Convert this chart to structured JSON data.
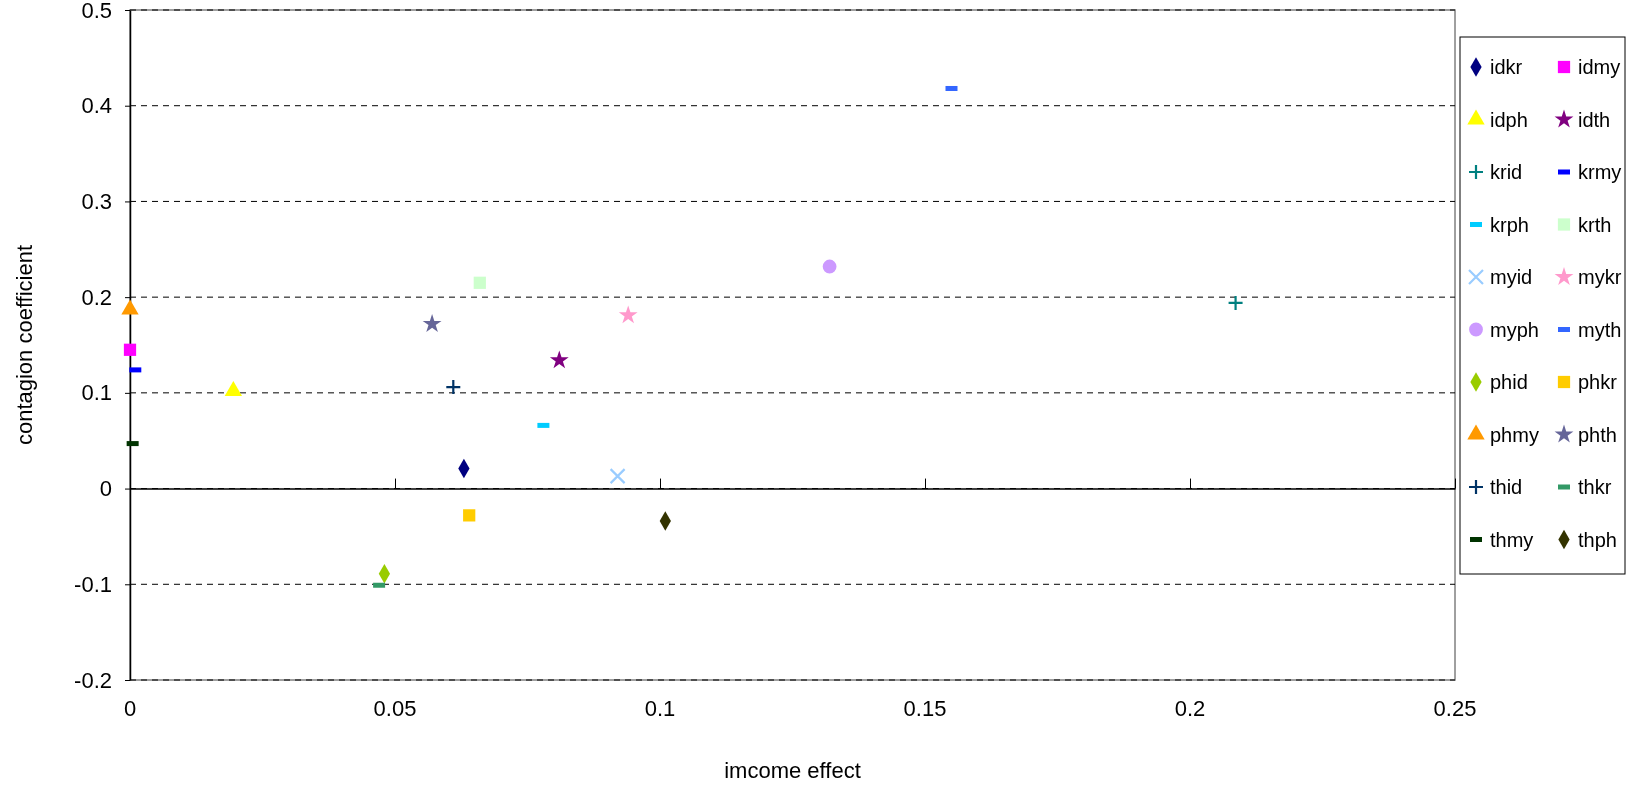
{
  "chart_data": {
    "type": "scatter",
    "xlabel": "imcome effect",
    "ylabel": "contagion coefficient",
    "xlim": [
      0,
      0.25
    ],
    "xticks": [
      0,
      0.05,
      0.1,
      0.15,
      0.2,
      0.25
    ],
    "ylim": [
      -0.2,
      0.5
    ],
    "yticks": [
      -0.2,
      -0.1,
      0,
      0.1,
      0.2,
      0.3,
      0.4,
      0.5
    ],
    "grid": "y",
    "legend": "right",
    "series": [
      {
        "name": "idkr",
        "color": "#000080",
        "marker": "diamond",
        "x": [
          0.063
        ],
        "values": [
          0.021
        ]
      },
      {
        "name": "idmy",
        "color": "#ff00ff",
        "marker": "square",
        "x": [
          0
        ],
        "values": [
          0.145
        ]
      },
      {
        "name": "idph",
        "color": "#ffff00",
        "marker": "triangle",
        "x": [
          0.0195
        ],
        "values": [
          0.102
        ]
      },
      {
        "name": "idth",
        "color": "#800080",
        "marker": "star",
        "x": [
          0.081
        ],
        "values": [
          0.134
        ]
      },
      {
        "name": "krid",
        "color": "#008080",
        "marker": "cross",
        "x": [
          0.2086
        ],
        "values": [
          0.194
        ]
      },
      {
        "name": "krmy",
        "color": "#0000ff",
        "x": [
          0.001
        ],
        "values": [
          0.124
        ]
      },
      {
        "name": "krph",
        "color": "#00ccff",
        "x": [
          0.078
        ],
        "values": [
          0.066
        ]
      },
      {
        "name": "krth",
        "color": "#ccffcc",
        "marker": "square",
        "x": [
          0.066
        ],
        "values": [
          0.215
        ]
      },
      {
        "name": "myid",
        "color": "#99ccff",
        "marker": "x",
        "x": [
          0.092
        ],
        "values": [
          0.013
        ]
      },
      {
        "name": "mykr",
        "color": "#ff99cc",
        "marker": "star",
        "x": [
          0.094
        ],
        "values": [
          0.181
        ]
      },
      {
        "name": "myph",
        "color": "#cc99ff",
        "marker": "circle",
        "x": [
          0.132
        ],
        "values": [
          0.232
        ]
      },
      {
        "name": "myth",
        "color": "#3366ff",
        "x": [
          0.155
        ],
        "values": [
          0.418
        ]
      },
      {
        "name": "phid",
        "color": "#99cc00",
        "marker": "diamond",
        "x": [
          0.048
        ],
        "values": [
          -0.089
        ]
      },
      {
        "name": "phkr",
        "color": "#ffcc00",
        "marker": "square",
        "x": [
          0.064
        ],
        "values": [
          -0.028
        ]
      },
      {
        "name": "phmy",
        "color": "#ff9900",
        "marker": "triangle",
        "x": [
          0
        ],
        "values": [
          0.187
        ]
      },
      {
        "name": "phth",
        "color": "#666699",
        "marker": "star",
        "x": [
          0.057
        ],
        "values": [
          0.172
        ]
      },
      {
        "name": "thid",
        "color": "#003366",
        "marker": "cross",
        "x": [
          0.061
        ],
        "values": [
          0.106
        ]
      },
      {
        "name": "thkr",
        "color": "#339966",
        "x": [
          0.047
        ],
        "values": [
          -0.101
        ]
      },
      {
        "name": "thmy",
        "color": "#003300",
        "x": [
          0.0005
        ],
        "values": [
          0.047
        ]
      },
      {
        "name": "thph",
        "color": "#333300",
        "marker": "diamond",
        "x": [
          0.101
        ],
        "values": [
          -0.034
        ]
      }
    ]
  }
}
